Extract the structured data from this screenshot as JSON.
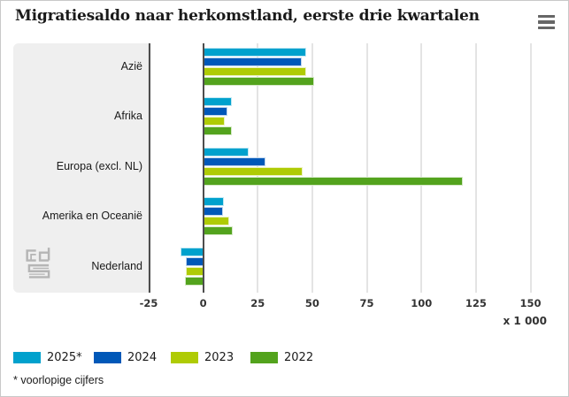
{
  "header": {
    "title": "Migratiesaldo naar herkomstland, eerste drie kwartalen",
    "menu_icon": "hamburger-menu-icon"
  },
  "chart_data": {
    "type": "bar",
    "orientation": "horizontal",
    "title": "Migratiesaldo naar herkomstland, eerste drie kwartalen",
    "unit_label": "x 1 000",
    "categories": [
      "Azië",
      "Afrika",
      "Europa (excl. NL)",
      "Amerika en Oceanië",
      "Nederland"
    ],
    "series": [
      {
        "name": "2025*",
        "color": "#00a1cd",
        "values": [
          47,
          13,
          21,
          9.5,
          -10.5
        ]
      },
      {
        "name": "2024",
        "color": "#0058b8",
        "values": [
          45,
          11,
          28.5,
          9,
          -8
        ]
      },
      {
        "name": "2023",
        "color": "#afcb05",
        "values": [
          47,
          10,
          45.5,
          12,
          -8
        ]
      },
      {
        "name": "2022",
        "color": "#53a31d",
        "values": [
          51,
          13,
          119,
          13.5,
          -8.5
        ]
      }
    ],
    "xaxis": {
      "min": -25,
      "max": 157.5,
      "ticks": [
        -25,
        0,
        25,
        50,
        75,
        100,
        125,
        150
      ]
    },
    "grid": true,
    "legend_position": "bottom"
  },
  "footnote": "* voorlopige cijfers",
  "branding": {
    "logo": "cbs-logo"
  },
  "colors": {
    "panel_bg": "#efefef",
    "gridline": "#e4e4e4",
    "axis_line": "#4d4d4d",
    "text": "#1a1a1a",
    "menu_icon": "#666666",
    "logo": "#b5b5b5"
  }
}
